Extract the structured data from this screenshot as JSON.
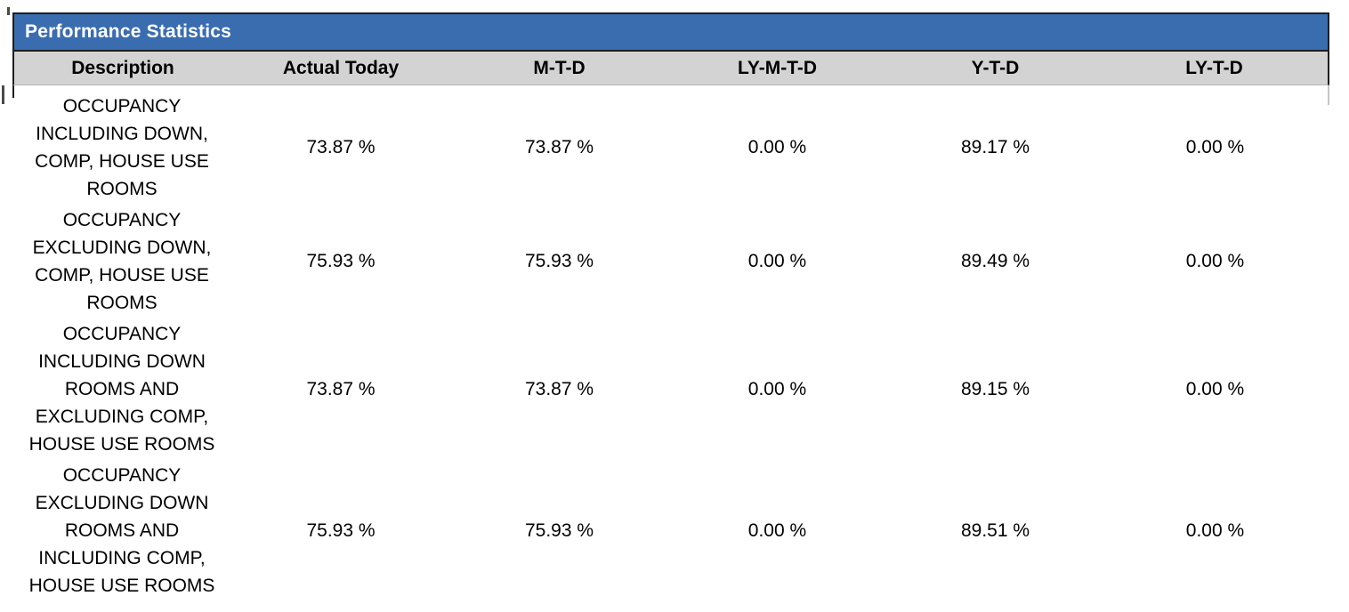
{
  "panel": {
    "title": "Performance Statistics"
  },
  "table": {
    "columns": [
      "Description",
      "Actual Today",
      "M-T-D",
      "LY-M-T-D",
      "Y-T-D",
      "LY-T-D"
    ],
    "rows": [
      {
        "description": "OCCUPANCY INCLUDING DOWN, COMP, HOUSE USE ROOMS",
        "actual_today": "73.87 %",
        "mtd": "73.87 %",
        "ly_mtd": "0.00 %",
        "ytd": "89.17 %",
        "ly_td": "0.00 %"
      },
      {
        "description": "OCCUPANCY EXCLUDING DOWN, COMP, HOUSE USE ROOMS",
        "actual_today": "75.93 %",
        "mtd": "75.93 %",
        "ly_mtd": "0.00 %",
        "ytd": "89.49 %",
        "ly_td": "0.00 %"
      },
      {
        "description": "OCCUPANCY INCLUDING DOWN ROOMS AND EXCLUDING COMP, HOUSE USE ROOMS",
        "actual_today": "73.87 %",
        "mtd": "73.87 %",
        "ly_mtd": "0.00 %",
        "ytd": "89.15 %",
        "ly_td": "0.00 %"
      },
      {
        "description": "OCCUPANCY EXCLUDING DOWN ROOMS AND INCLUDING COMP, HOUSE USE ROOMS",
        "actual_today": "75.93 %",
        "mtd": "75.93 %",
        "ly_mtd": "0.00 %",
        "ytd": "89.51 %",
        "ly_td": "0.00 %"
      }
    ]
  },
  "colors": {
    "title_bar_blue": "#3A6CB0",
    "title_text": "#FFFFFF",
    "header_row_gray": "#D3D3D3",
    "body_text": "#000000",
    "border_dark": "#1E1E1E"
  }
}
